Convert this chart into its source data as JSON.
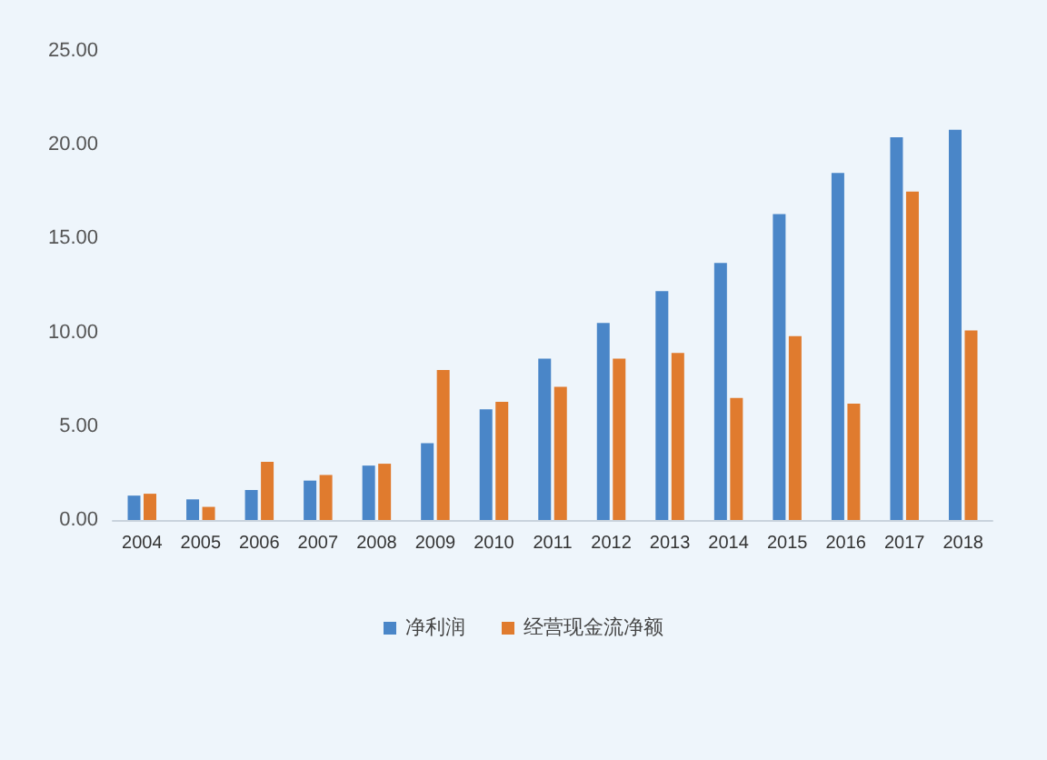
{
  "chart_data": {
    "type": "bar",
    "categories": [
      "2004",
      "2005",
      "2006",
      "2007",
      "2008",
      "2009",
      "2010",
      "2011",
      "2012",
      "2013",
      "2014",
      "2015",
      "2016",
      "2017",
      "2018"
    ],
    "series": [
      {
        "name": "净利润",
        "color": "#4a86c8",
        "values": [
          1.3,
          1.1,
          1.6,
          2.1,
          2.9,
          4.1,
          5.9,
          8.6,
          10.5,
          12.2,
          13.7,
          16.3,
          18.5,
          20.4,
          20.8
        ]
      },
      {
        "name": "经营现金流净额",
        "color": "#e07b2e",
        "values": [
          1.4,
          0.7,
          3.1,
          2.4,
          3.0,
          8.0,
          6.3,
          7.1,
          8.6,
          8.9,
          6.5,
          9.8,
          6.2,
          17.5,
          10.1
        ]
      }
    ],
    "ylim": [
      0,
      25
    ],
    "yticks": [
      {
        "value": 0,
        "label": "0.00"
      },
      {
        "value": 5,
        "label": "5.00"
      },
      {
        "value": 10,
        "label": "10.00"
      },
      {
        "value": 15,
        "label": "15.00"
      },
      {
        "value": 20,
        "label": "20.00"
      },
      {
        "value": 25,
        "label": "25.00"
      }
    ],
    "grid": false,
    "legend": "bottom"
  }
}
